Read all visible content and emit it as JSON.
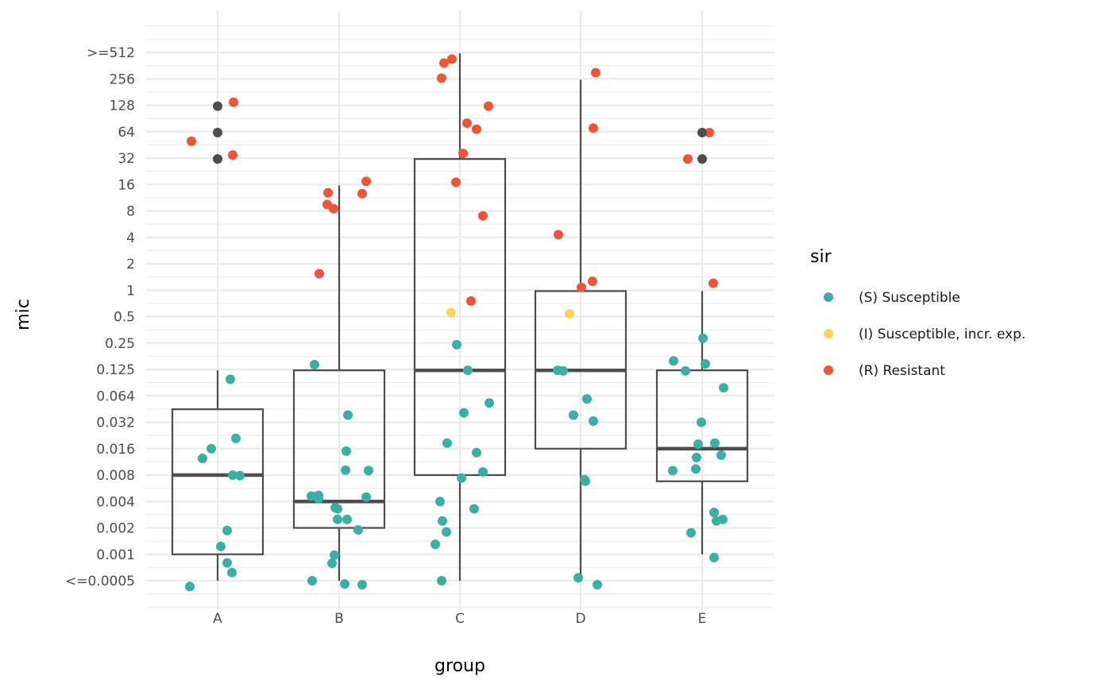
{
  "chart_data": {
    "type": "boxplot-with-jitter",
    "xlabel": "group",
    "ylabel": "mic",
    "y_scale": "log2",
    "categories": [
      "A",
      "B",
      "C",
      "D",
      "E"
    ],
    "y_tick_labels": [
      "<=0.0005",
      "0.001",
      "0.002",
      "0.004",
      "0.008",
      "0.016",
      "0.032",
      "0.064",
      "0.125",
      "0.25",
      "0.5",
      "1",
      "2",
      "4",
      "8",
      "16",
      "32",
      "64",
      "128",
      "256",
      ">=512"
    ],
    "grid": true,
    "legend": {
      "title": "sir",
      "position": "right",
      "entries": [
        {
          "key": "S",
          "label": "(S) Susceptible",
          "color": "#3CAEA3"
        },
        {
          "key": "I",
          "label": "(I) Susceptible, incr. exp.",
          "color": "#F6D55C"
        },
        {
          "key": "R",
          "label": "(R) Resistant",
          "color": "#ED553B"
        }
      ]
    },
    "na_color": "#4D4D4D",
    "boxes": [
      {
        "group": "A",
        "whisker_low": 0.0005,
        "q1": 0.001,
        "median": 0.008,
        "q3": 0.045,
        "whisker_high": 0.125
      },
      {
        "group": "B",
        "whisker_low": 0.0005,
        "q1": 0.002,
        "median": 0.004,
        "q3": 0.125,
        "whisker_high": 16
      },
      {
        "group": "C",
        "whisker_low": 0.0005,
        "q1": 0.008,
        "median": 0.125,
        "q3": 32,
        "whisker_high": 512
      },
      {
        "group": "D",
        "whisker_low": 0.0005,
        "q1": 0.016,
        "median": 0.125,
        "q3": 1,
        "whisker_high": 256
      },
      {
        "group": "E",
        "whisker_low": 0.001,
        "q1": 0.0068,
        "median": 0.016,
        "q3": 0.125,
        "whisker_high": 1
      }
    ],
    "points": [
      {
        "group": "A",
        "mic": 51,
        "sir": "R"
      },
      {
        "group": "A",
        "mic": 128,
        "sir": "NA"
      },
      {
        "group": "A",
        "mic": 142,
        "sir": "R"
      },
      {
        "group": "A",
        "mic": 64,
        "sir": "NA"
      },
      {
        "group": "A",
        "mic": 32,
        "sir": "NA"
      },
      {
        "group": "A",
        "mic": 35.5,
        "sir": "R"
      },
      {
        "group": "A",
        "mic": 0.099,
        "sir": "S"
      },
      {
        "group": "A",
        "mic": 0.021,
        "sir": "S"
      },
      {
        "group": "A",
        "mic": 0.016,
        "sir": "S"
      },
      {
        "group": "A",
        "mic": 0.0124,
        "sir": "S"
      },
      {
        "group": "A",
        "mic": 0.008,
        "sir": "S"
      },
      {
        "group": "A",
        "mic": 0.0079,
        "sir": "S"
      },
      {
        "group": "A",
        "mic": 0.00187,
        "sir": "S"
      },
      {
        "group": "A",
        "mic": 0.00123,
        "sir": "S"
      },
      {
        "group": "A",
        "mic": 0.0008,
        "sir": "S"
      },
      {
        "group": "A",
        "mic": 0.00062,
        "sir": "S"
      },
      {
        "group": "A",
        "mic": 0.00043,
        "sir": "S"
      },
      {
        "group": "B",
        "mic": 13.2,
        "sir": "R"
      },
      {
        "group": "B",
        "mic": 9.7,
        "sir": "R"
      },
      {
        "group": "B",
        "mic": 8.7,
        "sir": "R"
      },
      {
        "group": "B",
        "mic": 17.8,
        "sir": "R"
      },
      {
        "group": "B",
        "mic": 12.9,
        "sir": "R"
      },
      {
        "group": "B",
        "mic": 1.58,
        "sir": "R"
      },
      {
        "group": "B",
        "mic": 0.145,
        "sir": "S"
      },
      {
        "group": "B",
        "mic": 0.0386,
        "sir": "S"
      },
      {
        "group": "B",
        "mic": 0.015,
        "sir": "S"
      },
      {
        "group": "B",
        "mic": 0.0091,
        "sir": "S"
      },
      {
        "group": "B",
        "mic": 0.009,
        "sir": "S"
      },
      {
        "group": "B",
        "mic": 0.0046,
        "sir": "S"
      },
      {
        "group": "B",
        "mic": 0.0047,
        "sir": "S"
      },
      {
        "group": "B",
        "mic": 0.0043,
        "sir": "S"
      },
      {
        "group": "B",
        "mic": 0.0045,
        "sir": "S"
      },
      {
        "group": "B",
        "mic": 0.0034,
        "sir": "S"
      },
      {
        "group": "B",
        "mic": 0.0033,
        "sir": "S"
      },
      {
        "group": "B",
        "mic": 0.0025,
        "sir": "S"
      },
      {
        "group": "B",
        "mic": 0.0025,
        "sir": "S"
      },
      {
        "group": "B",
        "mic": 0.0019,
        "sir": "S"
      },
      {
        "group": "B",
        "mic": 0.00098,
        "sir": "S"
      },
      {
        "group": "B",
        "mic": 0.00079,
        "sir": "S"
      },
      {
        "group": "B",
        "mic": 0.0005,
        "sir": "S"
      },
      {
        "group": "B",
        "mic": 0.00046,
        "sir": "S"
      },
      {
        "group": "B",
        "mic": 0.00045,
        "sir": "S"
      },
      {
        "group": "C",
        "mic": 397,
        "sir": "R"
      },
      {
        "group": "C",
        "mic": 440,
        "sir": "R"
      },
      {
        "group": "C",
        "mic": 267,
        "sir": "R"
      },
      {
        "group": "C",
        "mic": 128,
        "sir": "R"
      },
      {
        "group": "C",
        "mic": 82,
        "sir": "R"
      },
      {
        "group": "C",
        "mic": 70,
        "sir": "R"
      },
      {
        "group": "C",
        "mic": 37,
        "sir": "R"
      },
      {
        "group": "C",
        "mic": 17.4,
        "sir": "R"
      },
      {
        "group": "C",
        "mic": 7.2,
        "sir": "R"
      },
      {
        "group": "C",
        "mic": 0.77,
        "sir": "R"
      },
      {
        "group": "C",
        "mic": 0.57,
        "sir": "I"
      },
      {
        "group": "C",
        "mic": 0.245,
        "sir": "S"
      },
      {
        "group": "C",
        "mic": 0.125,
        "sir": "S"
      },
      {
        "group": "C",
        "mic": 0.053,
        "sir": "S"
      },
      {
        "group": "C",
        "mic": 0.041,
        "sir": "S"
      },
      {
        "group": "C",
        "mic": 0.0185,
        "sir": "S"
      },
      {
        "group": "C",
        "mic": 0.0144,
        "sir": "S"
      },
      {
        "group": "C",
        "mic": 0.0074,
        "sir": "S"
      },
      {
        "group": "C",
        "mic": 0.0087,
        "sir": "S"
      },
      {
        "group": "C",
        "mic": 0.004,
        "sir": "S"
      },
      {
        "group": "C",
        "mic": 0.0033,
        "sir": "S"
      },
      {
        "group": "C",
        "mic": 0.0024,
        "sir": "S"
      },
      {
        "group": "C",
        "mic": 0.0018,
        "sir": "S"
      },
      {
        "group": "C",
        "mic": 0.0013,
        "sir": "S"
      },
      {
        "group": "C",
        "mic": 0.0005,
        "sir": "S"
      },
      {
        "group": "D",
        "mic": 308,
        "sir": "R"
      },
      {
        "group": "D",
        "mic": 72,
        "sir": "R"
      },
      {
        "group": "D",
        "mic": 4.4,
        "sir": "R"
      },
      {
        "group": "D",
        "mic": 1.29,
        "sir": "R"
      },
      {
        "group": "D",
        "mic": 1.1,
        "sir": "R"
      },
      {
        "group": "D",
        "mic": 0.55,
        "sir": "I"
      },
      {
        "group": "D",
        "mic": 0.125,
        "sir": "S"
      },
      {
        "group": "D",
        "mic": 0.123,
        "sir": "S"
      },
      {
        "group": "D",
        "mic": 0.059,
        "sir": "S"
      },
      {
        "group": "D",
        "mic": 0.0386,
        "sir": "S"
      },
      {
        "group": "D",
        "mic": 0.033,
        "sir": "S"
      },
      {
        "group": "D",
        "mic": 0.0071,
        "sir": "S"
      },
      {
        "group": "D",
        "mic": 0.0068,
        "sir": "S"
      },
      {
        "group": "D",
        "mic": 0.00054,
        "sir": "S"
      },
      {
        "group": "D",
        "mic": 0.00045,
        "sir": "S"
      },
      {
        "group": "E",
        "mic": 64,
        "sir": "R"
      },
      {
        "group": "E",
        "mic": 32,
        "sir": "R"
      },
      {
        "group": "E",
        "mic": 1.23,
        "sir": "R"
      },
      {
        "group": "E",
        "mic": 64,
        "sir": "NA"
      },
      {
        "group": "E",
        "mic": 32,
        "sir": "NA"
      },
      {
        "group": "E",
        "mic": 0.29,
        "sir": "S"
      },
      {
        "group": "E",
        "mic": 0.16,
        "sir": "S"
      },
      {
        "group": "E",
        "mic": 0.148,
        "sir": "S"
      },
      {
        "group": "E",
        "mic": 0.123,
        "sir": "S"
      },
      {
        "group": "E",
        "mic": 0.079,
        "sir": "S"
      },
      {
        "group": "E",
        "mic": 0.032,
        "sir": "S"
      },
      {
        "group": "E",
        "mic": 0.018,
        "sir": "S"
      },
      {
        "group": "E",
        "mic": 0.0185,
        "sir": "S"
      },
      {
        "group": "E",
        "mic": 0.0135,
        "sir": "S"
      },
      {
        "group": "E",
        "mic": 0.0127,
        "sir": "S"
      },
      {
        "group": "E",
        "mic": 0.009,
        "sir": "S"
      },
      {
        "group": "E",
        "mic": 0.0094,
        "sir": "S"
      },
      {
        "group": "E",
        "mic": 0.003,
        "sir": "S"
      },
      {
        "group": "E",
        "mic": 0.0024,
        "sir": "S"
      },
      {
        "group": "E",
        "mic": 0.0025,
        "sir": "S"
      },
      {
        "group": "E",
        "mic": 0.00176,
        "sir": "S"
      },
      {
        "group": "E",
        "mic": 0.00092,
        "sir": "S"
      }
    ]
  }
}
